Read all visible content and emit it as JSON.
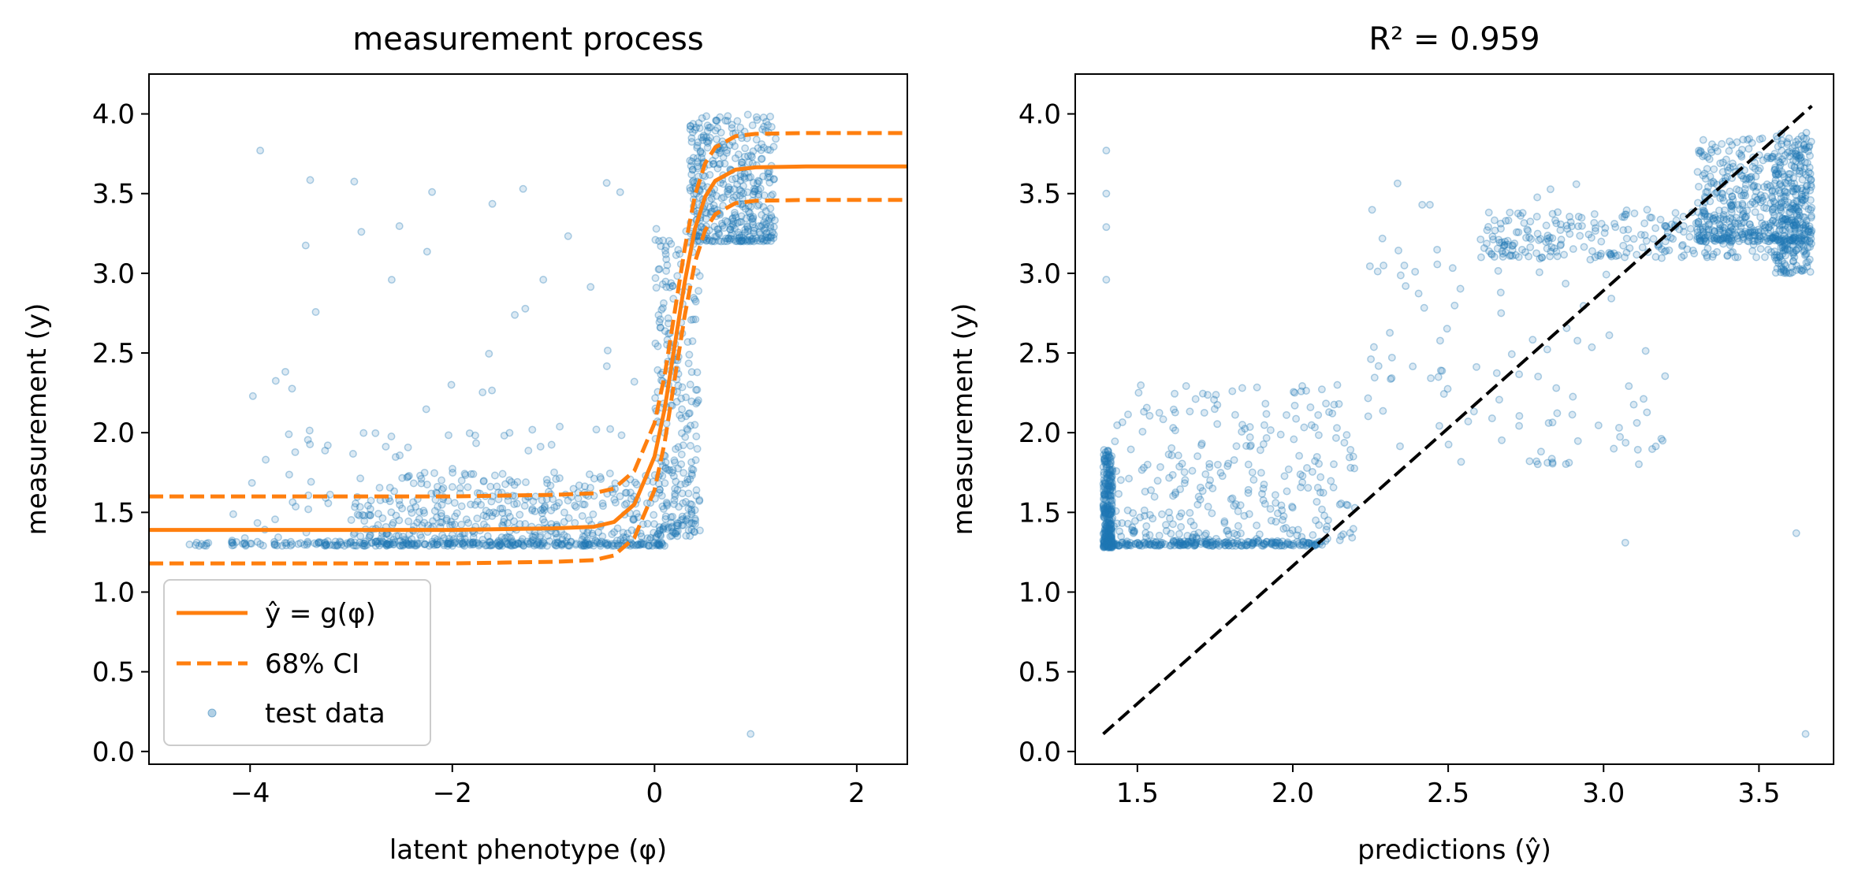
{
  "chart_data": [
    {
      "type": "scatter",
      "title": "measurement process",
      "xlabel": "latent phenotype (φ)",
      "ylabel": "measurement (y)",
      "xlim": [
        -5,
        2.5
      ],
      "ylim": [
        -0.08,
        4.25
      ],
      "xticks": [
        -4,
        -2,
        0,
        2
      ],
      "xtick_labels": [
        "−4",
        "−2",
        "0",
        "2"
      ],
      "yticks": [
        0.0,
        0.5,
        1.0,
        1.5,
        2.0,
        2.5,
        3.0,
        3.5,
        4.0
      ],
      "ytick_labels": [
        "0.0",
        "0.5",
        "1.0",
        "1.5",
        "2.0",
        "2.5",
        "3.0",
        "3.5",
        "4.0"
      ],
      "grid": false,
      "legend": {
        "placement": "lower-left",
        "entries": [
          {
            "label": "ŷ = g(φ)",
            "style": "solid-line",
            "color": "#ff7f0e"
          },
          {
            "label": "68% CI",
            "style": "dashed-line",
            "color": "#ff7f0e"
          },
          {
            "label": "test data",
            "style": "marker",
            "color": "#1f77b4"
          }
        ]
      },
      "series": [
        {
          "name": "ŷ = g(φ)",
          "kind": "line",
          "color": "#ff7f0e",
          "x": [
            -5.0,
            -4.0,
            -3.0,
            -2.0,
            -1.0,
            -0.6,
            -0.4,
            -0.2,
            0.0,
            0.1,
            0.2,
            0.3,
            0.4,
            0.5,
            0.6,
            0.8,
            1.0,
            1.5,
            2.0,
            2.5
          ],
          "y": [
            1.39,
            1.39,
            1.39,
            1.39,
            1.4,
            1.41,
            1.44,
            1.55,
            1.85,
            2.15,
            2.55,
            2.95,
            3.28,
            3.48,
            3.58,
            3.65,
            3.665,
            3.67,
            3.67,
            3.67
          ]
        },
        {
          "name": "68% CI upper",
          "kind": "dashed-line",
          "color": "#ff7f0e",
          "x": [
            -5.0,
            -4.0,
            -3.0,
            -2.0,
            -1.0,
            -0.6,
            -0.4,
            -0.2,
            0.0,
            0.1,
            0.2,
            0.3,
            0.4,
            0.5,
            0.6,
            0.8,
            1.0,
            1.5,
            2.0,
            2.5
          ],
          "y": [
            1.6,
            1.6,
            1.6,
            1.6,
            1.61,
            1.62,
            1.65,
            1.76,
            2.06,
            2.36,
            2.76,
            3.16,
            3.49,
            3.69,
            3.79,
            3.86,
            3.875,
            3.88,
            3.88,
            3.88
          ]
        },
        {
          "name": "68% CI lower",
          "kind": "dashed-line",
          "color": "#ff7f0e",
          "x": [
            -5.0,
            -4.0,
            -3.0,
            -2.0,
            -1.0,
            -0.6,
            -0.4,
            -0.2,
            0.0,
            0.1,
            0.2,
            0.3,
            0.4,
            0.5,
            0.6,
            0.8,
            1.0,
            1.5,
            2.0,
            2.5
          ],
          "y": [
            1.18,
            1.18,
            1.18,
            1.18,
            1.19,
            1.2,
            1.23,
            1.34,
            1.64,
            1.94,
            2.34,
            2.74,
            3.07,
            3.27,
            3.37,
            3.44,
            3.455,
            3.46,
            3.46,
            3.46
          ]
        },
        {
          "name": "test data",
          "kind": "scatter",
          "color": "#1f77b4",
          "clusters": [
            {
              "x_range": [
                -4.6,
                0.1
              ],
              "y_range": [
                1.29,
                1.32
              ],
              "n": 260
            },
            {
              "x_range": [
                -3.0,
                0.1
              ],
              "y_range": [
                1.3,
                1.75
              ],
              "n": 420
            },
            {
              "x_range": [
                -4.2,
                -0.3
              ],
              "y_range": [
                1.3,
                2.0
              ],
              "n": 90
            },
            {
              "x_range": [
                0.0,
                0.45
              ],
              "y_range": [
                1.35,
                3.3
              ],
              "n": 260
            },
            {
              "x_range": [
                0.35,
                1.2
              ],
              "y_range": [
                3.2,
                4.0
              ],
              "n": 420
            },
            {
              "x_range": [
                -4.0,
                0.0
              ],
              "y_range": [
                2.0,
                3.8
              ],
              "n": 30
            }
          ],
          "outliers": {
            "x": [
              -3.9,
              0.95,
              -2.9,
              -2.2,
              -1.3,
              -1.1,
              -0.2
            ],
            "y": [
              3.77,
              0.11,
              3.26,
              3.51,
              3.53,
              2.96,
              2.32
            ]
          }
        }
      ]
    },
    {
      "type": "scatter",
      "title": "R² = 0.959",
      "xlabel": "predictions (ŷ)",
      "ylabel": "measurement (y)",
      "xlim": [
        1.3,
        3.74
      ],
      "ylim": [
        -0.08,
        4.25
      ],
      "xticks": [
        1.5,
        2.0,
        2.5,
        3.0,
        3.5
      ],
      "xtick_labels": [
        "1.5",
        "2.0",
        "2.5",
        "3.0",
        "3.5"
      ],
      "yticks": [
        0.0,
        0.5,
        1.0,
        1.5,
        2.0,
        2.5,
        3.0,
        3.5,
        4.0
      ],
      "ytick_labels": [
        "0.0",
        "0.5",
        "1.0",
        "1.5",
        "2.0",
        "2.5",
        "3.0",
        "3.5",
        "4.0"
      ],
      "grid": false,
      "series": [
        {
          "kind": "dashed-line",
          "color": "#000000",
          "x": [
            1.39,
            3.67
          ],
          "y": [
            0.11,
            4.05
          ]
        },
        {
          "kind": "scatter",
          "color": "#1f77b4",
          "clusters": [
            {
              "x_range": [
                1.39,
                1.42
              ],
              "y_range": [
                1.28,
                1.9
              ],
              "n": 300
            },
            {
              "x_range": [
                1.42,
                2.1
              ],
              "y_range": [
                1.29,
                1.32
              ],
              "n": 220
            },
            {
              "x_range": [
                1.42,
                2.2
              ],
              "y_range": [
                1.32,
                2.3
              ],
              "n": 280
            },
            {
              "x_range": [
                2.2,
                3.2
              ],
              "y_range": [
                1.8,
                3.6
              ],
              "n": 120
            },
            {
              "x_range": [
                2.6,
                3.67
              ],
              "y_range": [
                3.1,
                3.4
              ],
              "n": 260
            },
            {
              "x_range": [
                3.3,
                3.67
              ],
              "y_range": [
                3.2,
                3.85
              ],
              "n": 500
            },
            {
              "x_range": [
                3.55,
                3.67
              ],
              "y_range": [
                3.0,
                3.9
              ],
              "n": 160
            }
          ],
          "outliers": {
            "x": [
              1.4,
              1.4,
              1.4,
              1.4,
              3.65,
              3.62,
              3.07,
              3.19
            ],
            "y": [
              3.77,
              3.5,
              3.29,
              2.96,
              0.11,
              1.37,
              1.31,
              1.95
            ]
          }
        }
      ]
    }
  ]
}
